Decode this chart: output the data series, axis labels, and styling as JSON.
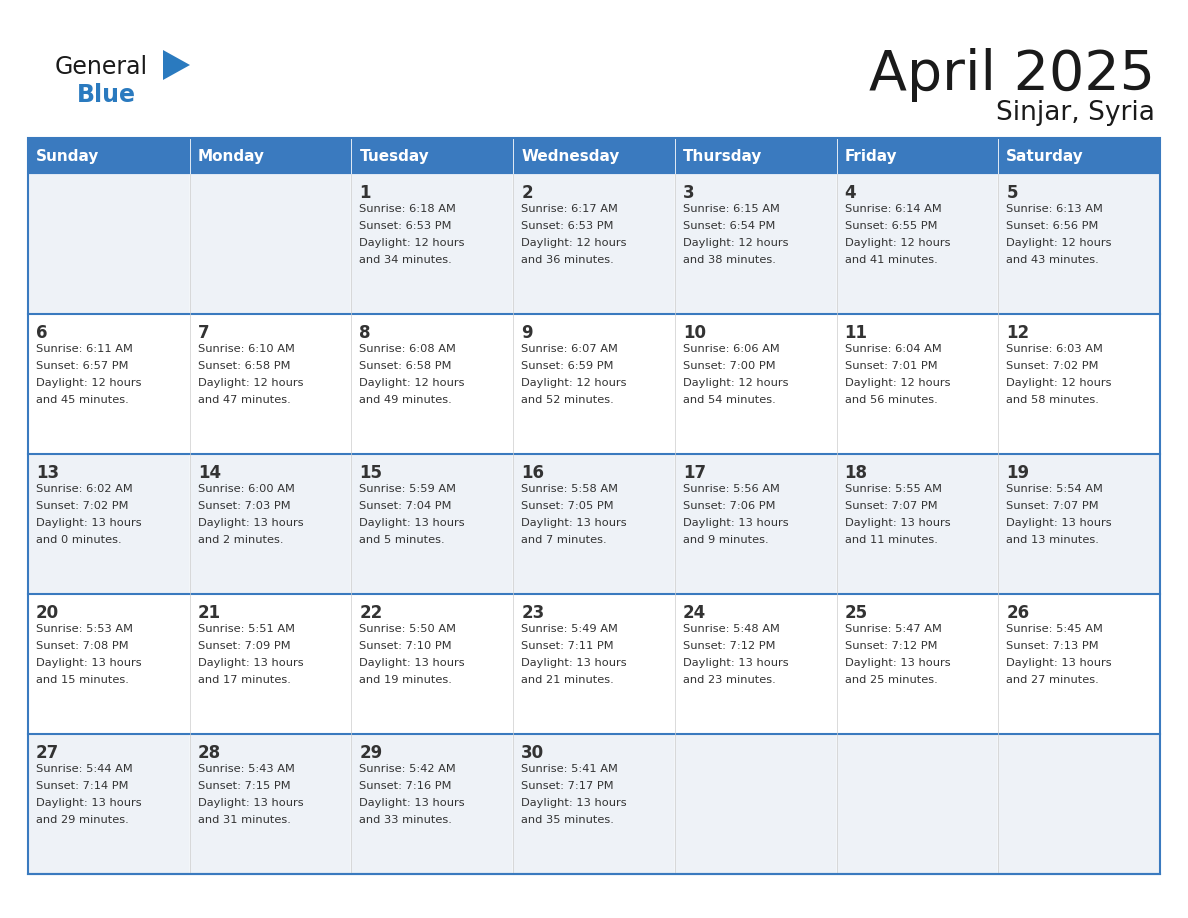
{
  "title": "April 2025",
  "subtitle": "Sinjar, Syria",
  "header_bg_color": "#3a7abf",
  "header_text_color": "#ffffff",
  "cell_bg_even": "#eef2f7",
  "cell_bg_odd": "#ffffff",
  "grid_color": "#3a7abf",
  "text_color": "#333333",
  "days_of_week": [
    "Sunday",
    "Monday",
    "Tuesday",
    "Wednesday",
    "Thursday",
    "Friday",
    "Saturday"
  ],
  "weeks": [
    [
      {
        "day": "",
        "sunrise": "",
        "sunset": "",
        "daylight": ""
      },
      {
        "day": "",
        "sunrise": "",
        "sunset": "",
        "daylight": ""
      },
      {
        "day": "1",
        "sunrise": "Sunrise: 6:18 AM",
        "sunset": "Sunset: 6:53 PM",
        "daylight": "Daylight: 12 hours\nand 34 minutes."
      },
      {
        "day": "2",
        "sunrise": "Sunrise: 6:17 AM",
        "sunset": "Sunset: 6:53 PM",
        "daylight": "Daylight: 12 hours\nand 36 minutes."
      },
      {
        "day": "3",
        "sunrise": "Sunrise: 6:15 AM",
        "sunset": "Sunset: 6:54 PM",
        "daylight": "Daylight: 12 hours\nand 38 minutes."
      },
      {
        "day": "4",
        "sunrise": "Sunrise: 6:14 AM",
        "sunset": "Sunset: 6:55 PM",
        "daylight": "Daylight: 12 hours\nand 41 minutes."
      },
      {
        "day": "5",
        "sunrise": "Sunrise: 6:13 AM",
        "sunset": "Sunset: 6:56 PM",
        "daylight": "Daylight: 12 hours\nand 43 minutes."
      }
    ],
    [
      {
        "day": "6",
        "sunrise": "Sunrise: 6:11 AM",
        "sunset": "Sunset: 6:57 PM",
        "daylight": "Daylight: 12 hours\nand 45 minutes."
      },
      {
        "day": "7",
        "sunrise": "Sunrise: 6:10 AM",
        "sunset": "Sunset: 6:58 PM",
        "daylight": "Daylight: 12 hours\nand 47 minutes."
      },
      {
        "day": "8",
        "sunrise": "Sunrise: 6:08 AM",
        "sunset": "Sunset: 6:58 PM",
        "daylight": "Daylight: 12 hours\nand 49 minutes."
      },
      {
        "day": "9",
        "sunrise": "Sunrise: 6:07 AM",
        "sunset": "Sunset: 6:59 PM",
        "daylight": "Daylight: 12 hours\nand 52 minutes."
      },
      {
        "day": "10",
        "sunrise": "Sunrise: 6:06 AM",
        "sunset": "Sunset: 7:00 PM",
        "daylight": "Daylight: 12 hours\nand 54 minutes."
      },
      {
        "day": "11",
        "sunrise": "Sunrise: 6:04 AM",
        "sunset": "Sunset: 7:01 PM",
        "daylight": "Daylight: 12 hours\nand 56 minutes."
      },
      {
        "day": "12",
        "sunrise": "Sunrise: 6:03 AM",
        "sunset": "Sunset: 7:02 PM",
        "daylight": "Daylight: 12 hours\nand 58 minutes."
      }
    ],
    [
      {
        "day": "13",
        "sunrise": "Sunrise: 6:02 AM",
        "sunset": "Sunset: 7:02 PM",
        "daylight": "Daylight: 13 hours\nand 0 minutes."
      },
      {
        "day": "14",
        "sunrise": "Sunrise: 6:00 AM",
        "sunset": "Sunset: 7:03 PM",
        "daylight": "Daylight: 13 hours\nand 2 minutes."
      },
      {
        "day": "15",
        "sunrise": "Sunrise: 5:59 AM",
        "sunset": "Sunset: 7:04 PM",
        "daylight": "Daylight: 13 hours\nand 5 minutes."
      },
      {
        "day": "16",
        "sunrise": "Sunrise: 5:58 AM",
        "sunset": "Sunset: 7:05 PM",
        "daylight": "Daylight: 13 hours\nand 7 minutes."
      },
      {
        "day": "17",
        "sunrise": "Sunrise: 5:56 AM",
        "sunset": "Sunset: 7:06 PM",
        "daylight": "Daylight: 13 hours\nand 9 minutes."
      },
      {
        "day": "18",
        "sunrise": "Sunrise: 5:55 AM",
        "sunset": "Sunset: 7:07 PM",
        "daylight": "Daylight: 13 hours\nand 11 minutes."
      },
      {
        "day": "19",
        "sunrise": "Sunrise: 5:54 AM",
        "sunset": "Sunset: 7:07 PM",
        "daylight": "Daylight: 13 hours\nand 13 minutes."
      }
    ],
    [
      {
        "day": "20",
        "sunrise": "Sunrise: 5:53 AM",
        "sunset": "Sunset: 7:08 PM",
        "daylight": "Daylight: 13 hours\nand 15 minutes."
      },
      {
        "day": "21",
        "sunrise": "Sunrise: 5:51 AM",
        "sunset": "Sunset: 7:09 PM",
        "daylight": "Daylight: 13 hours\nand 17 minutes."
      },
      {
        "day": "22",
        "sunrise": "Sunrise: 5:50 AM",
        "sunset": "Sunset: 7:10 PM",
        "daylight": "Daylight: 13 hours\nand 19 minutes."
      },
      {
        "day": "23",
        "sunrise": "Sunrise: 5:49 AM",
        "sunset": "Sunset: 7:11 PM",
        "daylight": "Daylight: 13 hours\nand 21 minutes."
      },
      {
        "day": "24",
        "sunrise": "Sunrise: 5:48 AM",
        "sunset": "Sunset: 7:12 PM",
        "daylight": "Daylight: 13 hours\nand 23 minutes."
      },
      {
        "day": "25",
        "sunrise": "Sunrise: 5:47 AM",
        "sunset": "Sunset: 7:12 PM",
        "daylight": "Daylight: 13 hours\nand 25 minutes."
      },
      {
        "day": "26",
        "sunrise": "Sunrise: 5:45 AM",
        "sunset": "Sunset: 7:13 PM",
        "daylight": "Daylight: 13 hours\nand 27 minutes."
      }
    ],
    [
      {
        "day": "27",
        "sunrise": "Sunrise: 5:44 AM",
        "sunset": "Sunset: 7:14 PM",
        "daylight": "Daylight: 13 hours\nand 29 minutes."
      },
      {
        "day": "28",
        "sunrise": "Sunrise: 5:43 AM",
        "sunset": "Sunset: 7:15 PM",
        "daylight": "Daylight: 13 hours\nand 31 minutes."
      },
      {
        "day": "29",
        "sunrise": "Sunrise: 5:42 AM",
        "sunset": "Sunset: 7:16 PM",
        "daylight": "Daylight: 13 hours\nand 33 minutes."
      },
      {
        "day": "30",
        "sunrise": "Sunrise: 5:41 AM",
        "sunset": "Sunset: 7:17 PM",
        "daylight": "Daylight: 13 hours\nand 35 minutes."
      },
      {
        "day": "",
        "sunrise": "",
        "sunset": "",
        "daylight": ""
      },
      {
        "day": "",
        "sunrise": "",
        "sunset": "",
        "daylight": ""
      },
      {
        "day": "",
        "sunrise": "",
        "sunset": "",
        "daylight": ""
      }
    ]
  ],
  "logo_text_general": "General",
  "logo_text_blue": "Blue",
  "logo_triangle_color": "#2a7abf",
  "logo_general_color": "#1a1a1a",
  "logo_blue_color": "#2a7abf"
}
